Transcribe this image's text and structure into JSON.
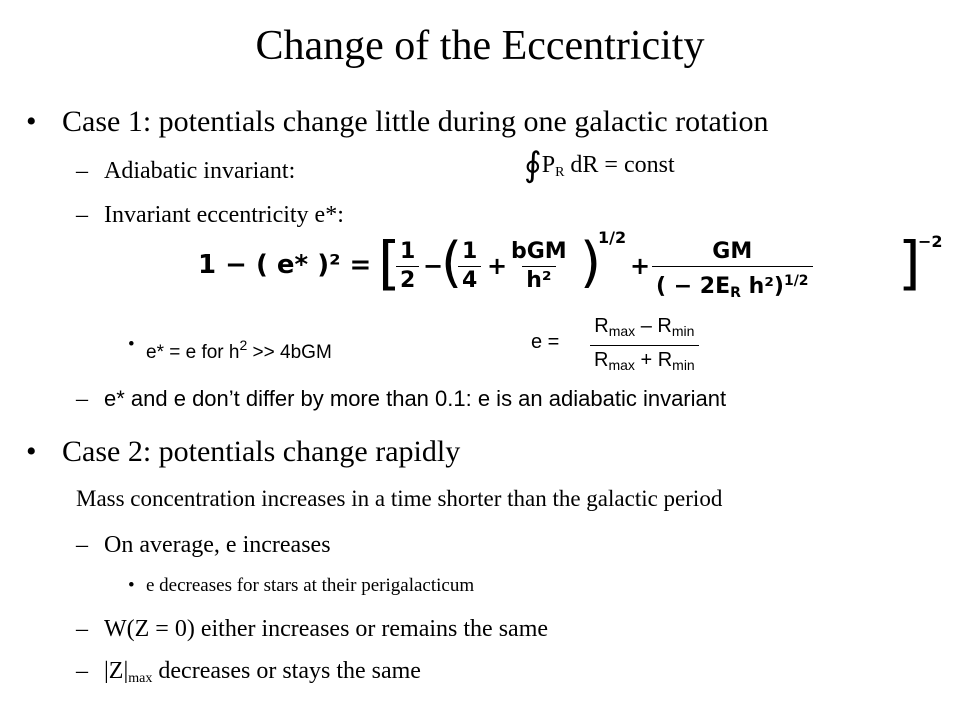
{
  "title": "Change of the Eccentricity",
  "bullet_glyph": "•",
  "dash_glyph": "–",
  "case1": {
    "text": "Case 1: potentials change little during one galactic rotation",
    "adiabatic_label": "Adiabatic invariant:",
    "integral_symbol": "∮",
    "integral_p": "P",
    "integral_p_sub": "R",
    "integral_rest": " dR  =  const",
    "invariant_label": "Invariant eccentricity e*:",
    "eq_lhs": "1 − ( e* )² = ",
    "eq_open": "[",
    "eq_half_num": "1",
    "eq_half_den": "2",
    "eq_minus": "−",
    "eq_paren_open": "(",
    "eq_quarter_num": "1",
    "eq_quarter_den": "4",
    "eq_plus": "+",
    "eq_bgm_num": "bGM",
    "eq_bgm_den": "h²",
    "eq_paren_close": ")",
    "eq_exp_half": "1/2",
    "eq_plus2": "+",
    "eq_gm_num": "GM",
    "eq_gm_den": "( − 2E",
    "eq_gm_den_sub": "R",
    "eq_gm_den_rest": " h²)",
    "eq_gm_den_exp": "1/2",
    "eq_close": "]",
    "eq_exp_outer": "−2",
    "sub_bullet_pre": "e* = e  for h",
    "sub_bullet_sup": "2",
    "sub_bullet_post": " >> 4bGM",
    "e_def_lhs": "e  =",
    "e_def_num_a": "R",
    "e_def_num_a_sub": "max",
    "e_def_num_op": " – R",
    "e_def_num_b_sub": "min",
    "e_def_den_a": "R",
    "e_def_den_a_sub": "max",
    "e_def_den_op": " + R",
    "e_def_den_b_sub": "min",
    "differ_text": "e* and e don’t differ by more than 0.1:   e is an adiabatic invariant"
  },
  "case2": {
    "text": "Case 2: potentials change rapidly",
    "mass_text": "Mass concentration increases in a time shorter than the galactic period",
    "avg_text": "On average, e increases",
    "peri_text": "e decreases for stars at their perigalacticum",
    "w_text": "W(Z = 0) either increases or remains the same",
    "z_pre": "|Z|",
    "z_sub": "max",
    "z_post": " decreases or stays the same"
  }
}
